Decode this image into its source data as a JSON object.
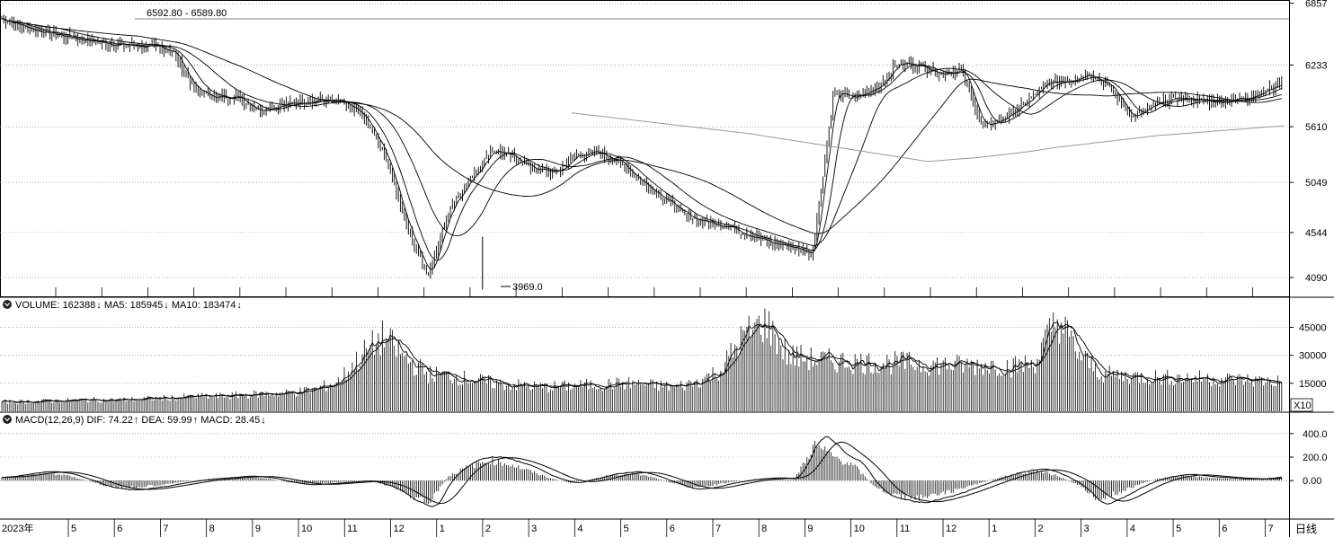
{
  "chart_data": [
    {
      "type": "candlestick",
      "panel": "price",
      "y_ticks": [
        "6857",
        "6233",
        "5610",
        "5049",
        "4544",
        "4090"
      ],
      "ylim": [
        3900,
        6870
      ],
      "annotations": {
        "top_range": "6592.80 - 6589.80",
        "low_label": "3969.0",
        "low_value": 3969.0
      },
      "series": [
        {
          "name": "close",
          "values": [
            6700,
            6620,
            6560,
            6520,
            6480,
            6450,
            6430,
            6420,
            6380,
            6000,
            5900,
            5920,
            5780,
            5820,
            5860,
            5880,
            5850,
            5700,
            5300,
            4600,
            4100,
            4800,
            5100,
            5380,
            5300,
            5180,
            5150,
            5330,
            5350,
            5250,
            5050,
            4900,
            4720,
            4650,
            4610,
            4520,
            4440,
            4400,
            4330,
            5950,
            5900,
            6000,
            6250,
            6230,
            6150,
            6180,
            5600,
            5700,
            5850,
            6050,
            6080,
            6150,
            6000,
            5700,
            5820,
            5900,
            5880,
            5860,
            5890,
            5950,
            6050
          ]
        },
        {
          "name": "MA-long",
          "values": [
            5750,
            5720,
            5690,
            5660,
            5630,
            5600,
            5570,
            5540,
            5500,
            5460,
            5420,
            5380,
            5340,
            5300,
            5260,
            5280,
            5300,
            5330,
            5360,
            5400,
            5430,
            5460,
            5490,
            5520,
            5540,
            5560,
            5580,
            5600,
            5620
          ]
        }
      ]
    },
    {
      "type": "bar",
      "panel": "volume",
      "header": {
        "label": "VOLUME: 162388",
        "ma5": "MA5: 185945",
        "ma10": "MA10: 183474"
      },
      "y_ticks": [
        "45000",
        "30000",
        "15000"
      ],
      "ylim": [
        0,
        52000
      ],
      "unit": "X10",
      "values": [
        5000,
        5200,
        5500,
        5800,
        6200,
        6000,
        6500,
        7000,
        7500,
        8000,
        8200,
        9000,
        9500,
        10000,
        12000,
        16000,
        30000,
        40000,
        28000,
        20000,
        19000,
        17000,
        15000,
        14000,
        13000,
        13500,
        14000,
        14500,
        15000,
        14000,
        13000,
        16000,
        22000,
        40000,
        48000,
        30000,
        28000,
        27000,
        26500,
        26000,
        26000,
        25500,
        25000,
        24500,
        25000,
        24000,
        26000,
        50000,
        30000,
        20000,
        19000,
        18500,
        18000,
        18000,
        17500,
        17000,
        16500,
        16000
      ]
    },
    {
      "type": "histogram",
      "panel": "macd",
      "header": {
        "label": "MACD(12,26,9)",
        "dif": "DIF: 74.22",
        "dea": "DEA: 59.99",
        "macd": "MACD: 28.45"
      },
      "y_ticks": [
        "400.0",
        "200.0",
        "0.00"
      ],
      "ylim": [
        -320,
        460
      ],
      "values": [
        20,
        40,
        60,
        50,
        10,
        -40,
        -60,
        -50,
        -30,
        -10,
        10,
        20,
        30,
        20,
        -10,
        -30,
        -20,
        -10,
        0,
        -40,
        -120,
        -200,
        40,
        120,
        170,
        140,
        80,
        20,
        -20,
        10,
        50,
        60,
        30,
        -20,
        -60,
        -40,
        -10,
        10,
        20,
        10,
        300,
        200,
        120,
        -60,
        -130,
        -150,
        -120,
        -80,
        -30,
        20,
        60,
        80,
        40,
        -40,
        -160,
        -100,
        -30,
        20,
        40,
        30,
        20,
        10,
        10,
        30
      ]
    }
  ],
  "x_axis": {
    "year_label": "2023年",
    "months": [
      "5",
      "6",
      "7",
      "8",
      "9",
      "10",
      "11",
      "12",
      "1",
      "2",
      "3",
      "4",
      "5",
      "6",
      "7",
      "8",
      "9",
      "10",
      "11",
      "12",
      "1",
      "2",
      "3",
      "4",
      "5",
      "6",
      "7"
    ],
    "period": "日线"
  }
}
